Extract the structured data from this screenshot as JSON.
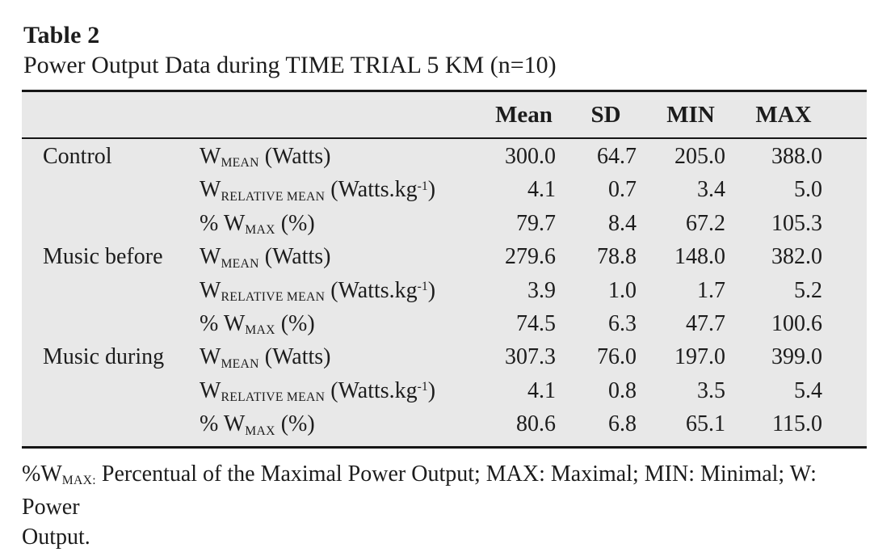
{
  "caption": {
    "label": "Table 2",
    "title": "Power Output Data during TIME TRIAL 5 KM (n=10)"
  },
  "header": {
    "mean": "Mean",
    "sd": "SD",
    "min": "MIN",
    "max": "MAX"
  },
  "rows": [
    {
      "group": "Control",
      "var_base": "W",
      "var_sub": "MEAN",
      "unit_pre": " (Watts)",
      "sup": "",
      "unit_post": "",
      "mean": "300.0",
      "sd": "64.7",
      "min": "205.0",
      "max": "388.0"
    },
    {
      "group": "",
      "var_base": "W",
      "var_sub": "RELATIVE MEAN",
      "unit_pre": " (Watts.kg",
      "sup": "-1",
      "unit_post": ")",
      "mean": "4.1",
      "sd": "0.7",
      "min": "3.4",
      "max": "5.0"
    },
    {
      "group": "",
      "var_base": "% W",
      "var_sub": "MAX",
      "unit_pre": " (%)",
      "sup": "",
      "unit_post": "",
      "mean": "79.7",
      "sd": "8.4",
      "min": "67.2",
      "max": "105.3"
    },
    {
      "group": "Music before",
      "var_base": "W",
      "var_sub": "MEAN",
      "unit_pre": " (Watts)",
      "sup": "",
      "unit_post": "",
      "mean": "279.6",
      "sd": "78.8",
      "min": "148.0",
      "max": "382.0"
    },
    {
      "group": "",
      "var_base": "W",
      "var_sub": "RELATIVE MEAN",
      "unit_pre": " (Watts.kg",
      "sup": "-1",
      "unit_post": ")",
      "mean": "3.9",
      "sd": "1.0",
      "min": "1.7",
      "max": "5.2"
    },
    {
      "group": "",
      "var_base": "% W",
      "var_sub": "MAX",
      "unit_pre": " (%)",
      "sup": "",
      "unit_post": "",
      "mean": "74.5",
      "sd": "6.3",
      "min": "47.7",
      "max": "100.6"
    },
    {
      "group": "Music during",
      "var_base": "W",
      "var_sub": "MEAN",
      "unit_pre": " (Watts)",
      "sup": "",
      "unit_post": "",
      "mean": "307.3",
      "sd": "76.0",
      "min": "197.0",
      "max": "399.0"
    },
    {
      "group": "",
      "var_base": "W",
      "var_sub": "RELATIVE MEAN",
      "unit_pre": " (Watts.kg",
      "sup": "-1",
      "unit_post": ")",
      "mean": "4.1",
      "sd": "0.8",
      "min": "3.5",
      "max": "5.4"
    },
    {
      "group": "",
      "var_base": "% W",
      "var_sub": "MAX",
      "unit_pre": " (%)",
      "sup": "",
      "unit_post": "",
      "mean": "80.6",
      "sd": "6.8",
      "min": "65.1",
      "max": "115.0"
    }
  ],
  "footnote": {
    "prefix": "%W",
    "sub": "MAX:",
    "line1_rest": " Percentual of the Maximal Power Output; MAX: Maximal; MIN: Minimal; W: Power",
    "line2": "Output."
  }
}
